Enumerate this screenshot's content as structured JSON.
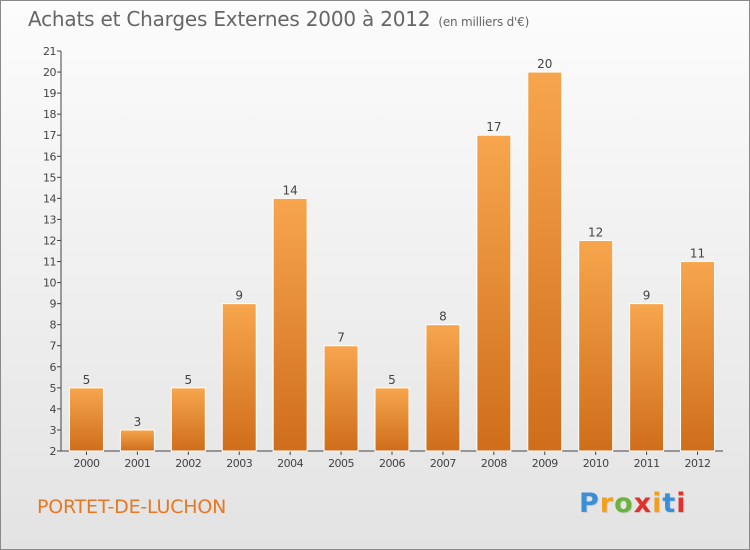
{
  "header": {
    "title": "Achats et Charges Externes 2000 à 2012",
    "unit": "(en milliers d'€)"
  },
  "footer": {
    "place": "PORTET-DE-LUCHON",
    "logo": {
      "letters": [
        "P",
        "r",
        "o",
        "x",
        "i",
        "t",
        "i"
      ],
      "colors": [
        "#3a8fd6",
        "#f0a020",
        "#6cb33e",
        "#e0322b",
        "#f0a020",
        "#3a8fd6",
        "#e0322b"
      ]
    }
  },
  "colors": {
    "bar_top": "#f7a64e",
    "bar_bottom": "#cf6d1a",
    "accent": "#e87722"
  },
  "chart_data": {
    "type": "bar",
    "title": "Achats et Charges Externes 2000 à 2012",
    "subtitle": "(en milliers d'€)",
    "categories": [
      "2000",
      "2001",
      "2002",
      "2003",
      "2004",
      "2005",
      "2006",
      "2007",
      "2008",
      "2009",
      "2010",
      "2011",
      "2012"
    ],
    "values": [
      5,
      3,
      5,
      9,
      14,
      7,
      5,
      8,
      17,
      20,
      12,
      9,
      11
    ],
    "ylim": [
      2,
      21
    ],
    "yticks": [
      "2",
      "3",
      "4",
      "5",
      "6",
      "7",
      "8",
      "9",
      "10",
      "11",
      "12",
      "13",
      "14",
      "15",
      "16",
      "17",
      "18",
      "19",
      "20",
      "21"
    ],
    "grid": false,
    "legend": "none"
  }
}
